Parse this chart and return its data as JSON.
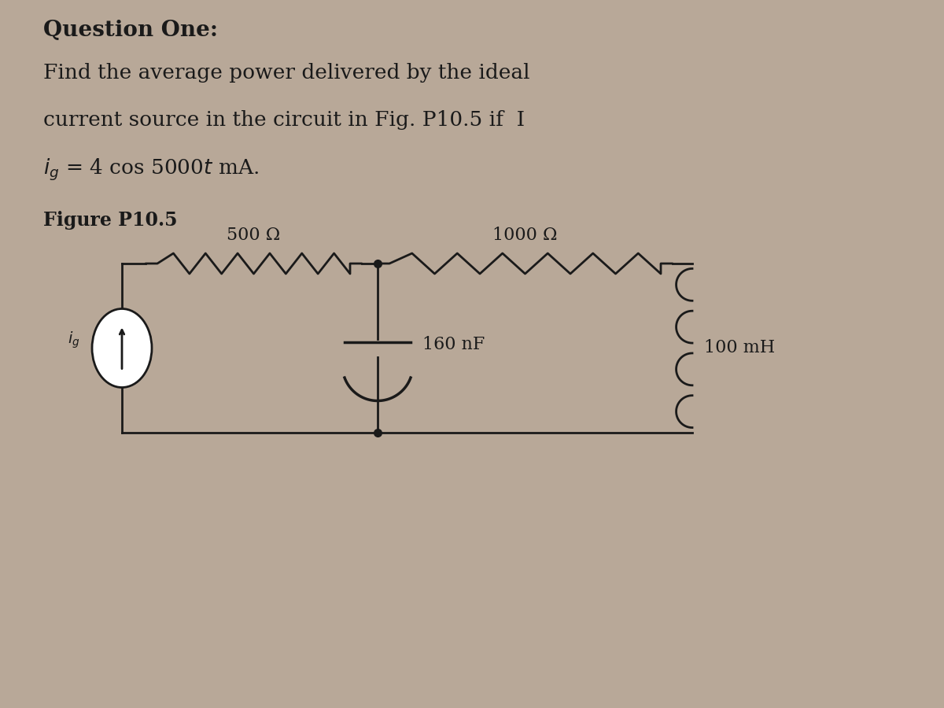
{
  "bg_color": "#b8a898",
  "circuit_bg": "#c4b4a4",
  "title_text": "Question One:",
  "body_line1": "Find the average power delivered by the ideal",
  "body_line2": "current source in the circuit in Fig. P10.5 if  I",
  "body_line3": "i_g = 4 cos 5000t mA.",
  "figure_label": "Figure P10.5",
  "resistor1_label": "500 Ω",
  "resistor2_label": "1000 Ω",
  "capacitor_label": "160 nF",
  "inductor_label": "100 mH",
  "cs_label": "i_g",
  "line_color": "#1a1a1a",
  "text_color": "#1a1a1a",
  "fs_title": 20,
  "fs_body": 19,
  "fs_label": 16,
  "fs_figlabel": 17,
  "lw": 2.0
}
